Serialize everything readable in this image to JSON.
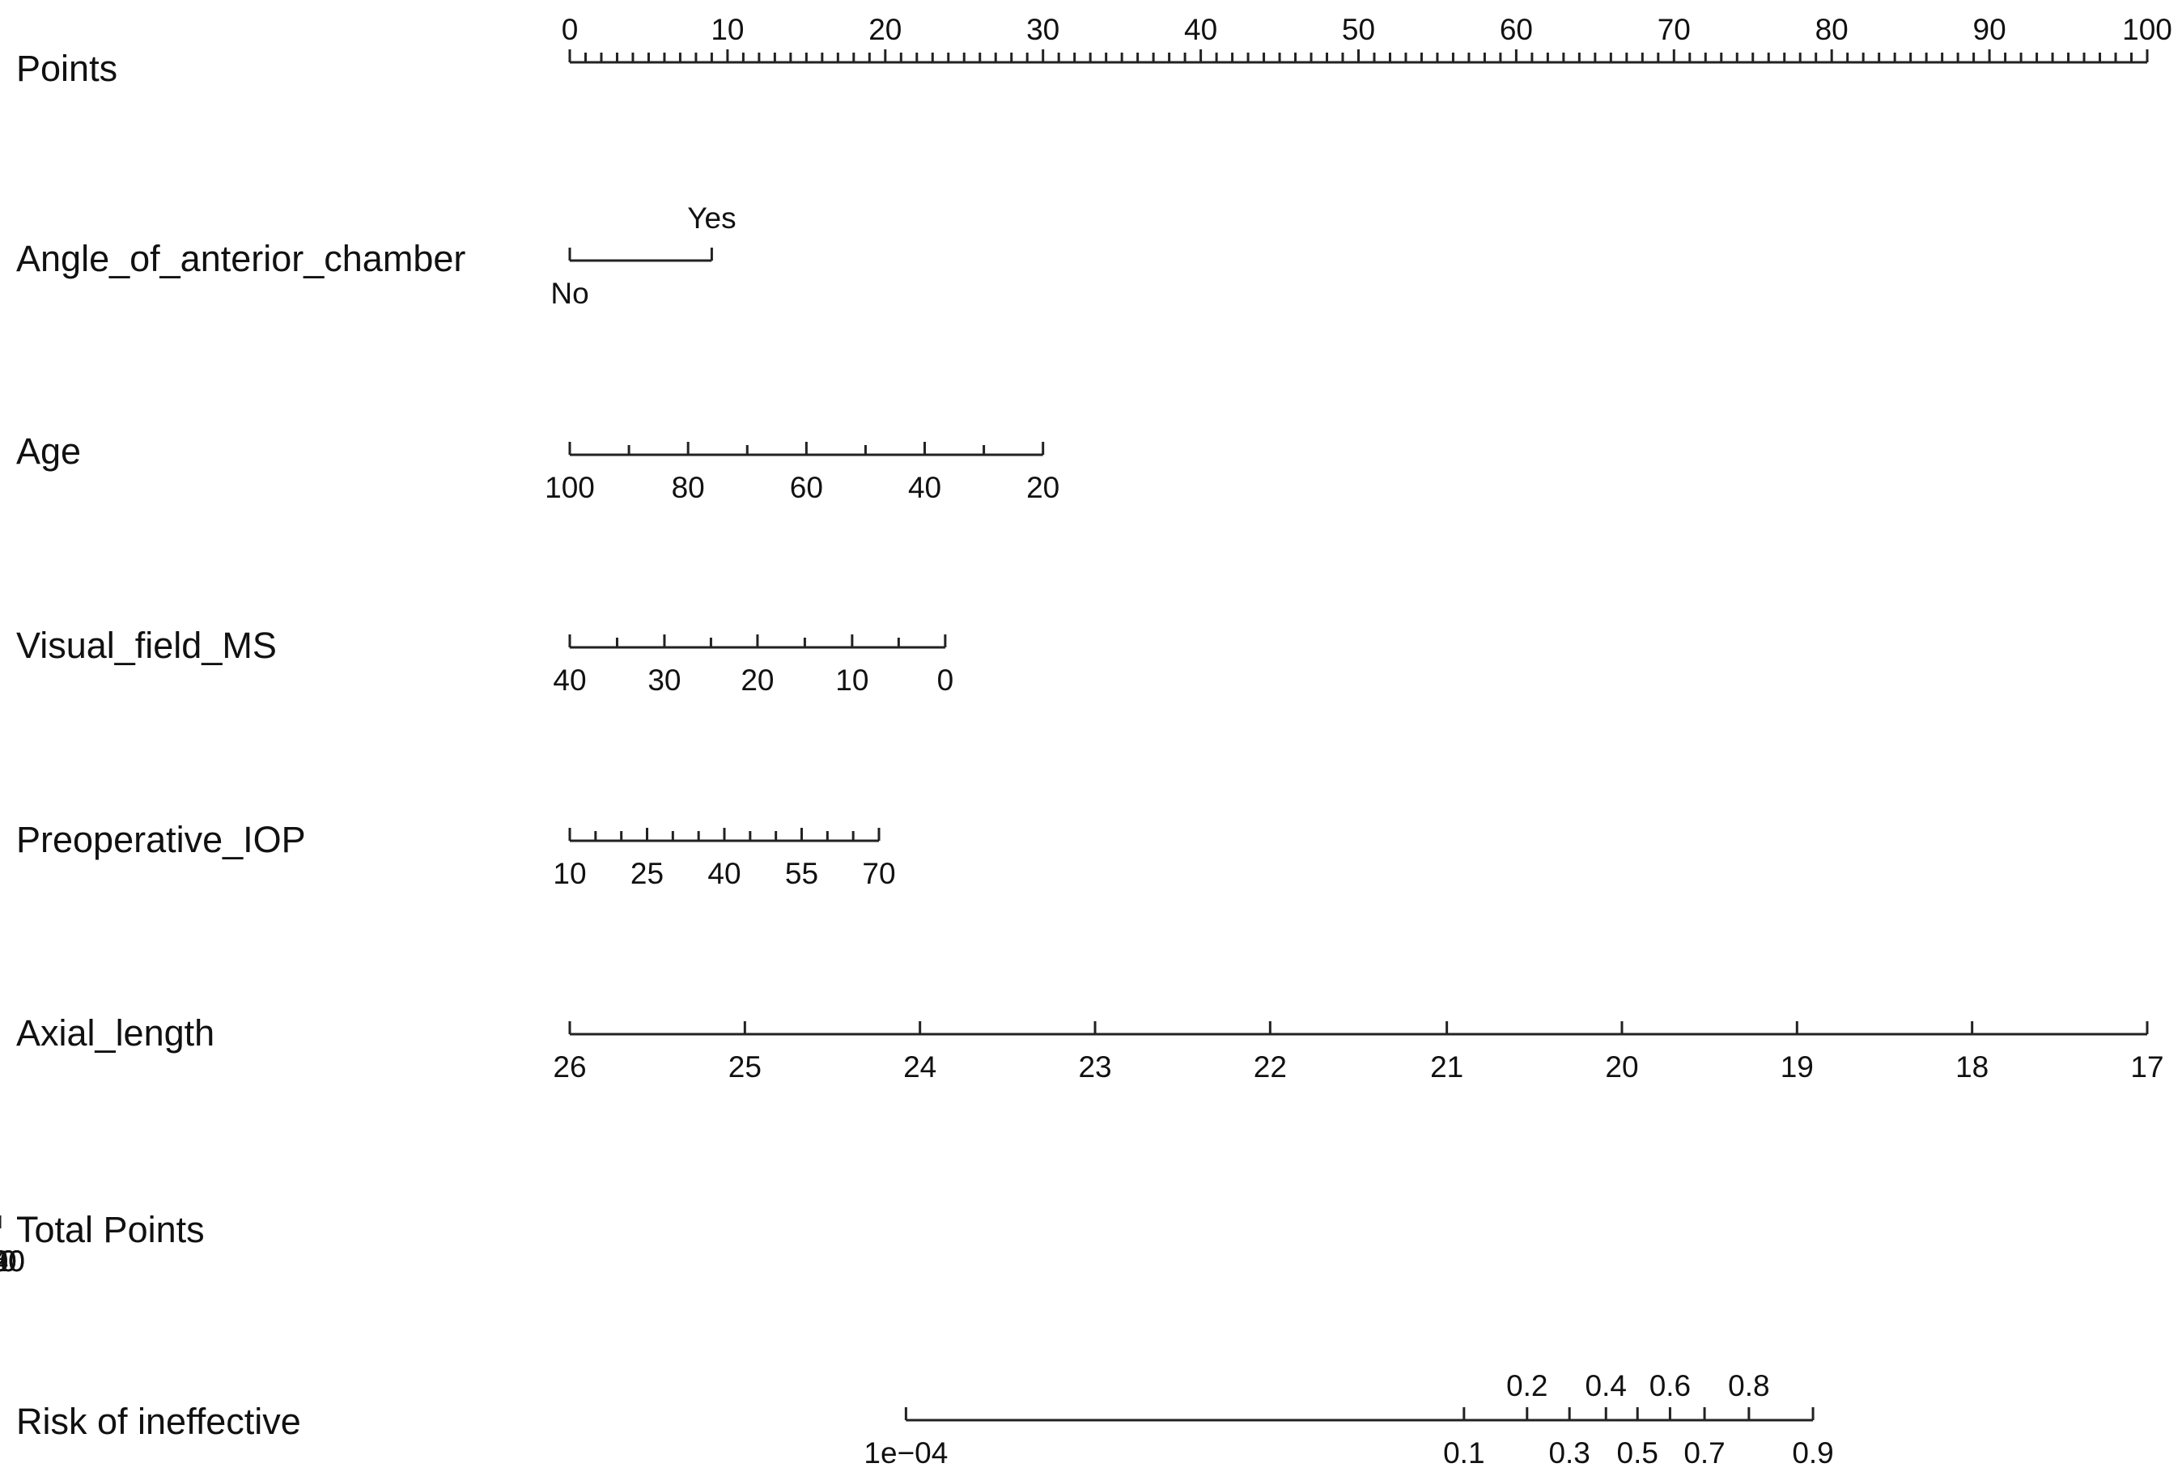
{
  "chart_data": {
    "type": "nomogram",
    "rows": [
      {
        "label": "Points",
        "ticks": [
          {
            "value": "0",
            "points": 0
          },
          {
            "value": "10",
            "points": 10
          },
          {
            "value": "20",
            "points": 20
          },
          {
            "value": "30",
            "points": 30
          },
          {
            "value": "40",
            "points": 40
          },
          {
            "value": "50",
            "points": 50
          },
          {
            "value": "60",
            "points": 60
          },
          {
            "value": "70",
            "points": 70
          },
          {
            "value": "80",
            "points": 80
          },
          {
            "value": "90",
            "points": 90
          },
          {
            "value": "100",
            "points": 100
          }
        ]
      },
      {
        "label": "Angle_of_anterior_chamber",
        "ticks": [
          {
            "value": "No",
            "points": 0
          },
          {
            "value": "Yes",
            "points": 9
          }
        ]
      },
      {
        "label": "Age",
        "ticks": [
          {
            "value": "100",
            "points": 0
          },
          {
            "value": "80",
            "points": 7.5
          },
          {
            "value": "60",
            "points": 15
          },
          {
            "value": "40",
            "points": 22.5
          },
          {
            "value": "20",
            "points": 30
          }
        ]
      },
      {
        "label": "Visual_field_MS",
        "ticks": [
          {
            "value": "40",
            "points": 0
          },
          {
            "value": "30",
            "points": 6
          },
          {
            "value": "20",
            "points": 11.9
          },
          {
            "value": "10",
            "points": 17.9
          },
          {
            "value": "0",
            "points": 23.8
          }
        ]
      },
      {
        "label": "Preoperative_IOP",
        "ticks": [
          {
            "value": "10",
            "points": 0
          },
          {
            "value": "25",
            "points": 4.9
          },
          {
            "value": "40",
            "points": 9.8
          },
          {
            "value": "55",
            "points": 14.7
          },
          {
            "value": "70",
            "points": 19.6
          }
        ]
      },
      {
        "label": "Axial_length",
        "ticks": [
          {
            "value": "26",
            "points": 0
          },
          {
            "value": "25",
            "points": 11.1
          },
          {
            "value": "24",
            "points": 22.2
          },
          {
            "value": "23",
            "points": 33.3
          },
          {
            "value": "22",
            "points": 44.4
          },
          {
            "value": "21",
            "points": 55.6
          },
          {
            "value": "20",
            "points": 66.7
          },
          {
            "value": "19",
            "points": 77.8
          },
          {
            "value": "18",
            "points": 88.9
          },
          {
            "value": "17",
            "points": 100
          }
        ]
      },
      {
        "label": "Total Points",
        "ticks": [
          {
            "value": "0",
            "points": 0
          },
          {
            "value": "20",
            "points": 20
          },
          {
            "value": "40",
            "points": 40
          },
          {
            "value": "60",
            "points": 60
          },
          {
            "value": "80",
            "points": 80
          },
          {
            "value": "100",
            "points": 100
          },
          {
            "value": "120",
            "points": 120
          },
          {
            "value": "140",
            "points": 140
          },
          {
            "value": "160",
            "points": 160
          }
        ]
      },
      {
        "label": "Risk of ineffective",
        "ticks": [
          {
            "value": "1e−04",
            "total_points": 34.1
          },
          {
            "value": "0.1",
            "total_points": 90.7
          },
          {
            "value": "0.2",
            "total_points": 97.1
          },
          {
            "value": "0.3",
            "total_points": 101.4
          },
          {
            "value": "0.4",
            "total_points": 105.1
          },
          {
            "value": "0.5",
            "total_points": 108.3
          },
          {
            "value": "0.6",
            "total_points": 111.6
          },
          {
            "value": "0.7",
            "total_points": 115.1
          },
          {
            "value": "0.8",
            "total_points": 119.6
          },
          {
            "value": "0.9",
            "total_points": 126.1
          }
        ]
      }
    ]
  }
}
